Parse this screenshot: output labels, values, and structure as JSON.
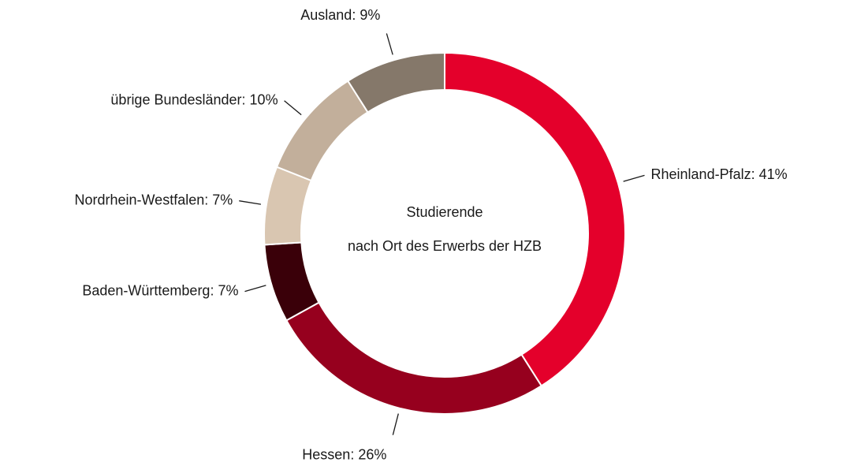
{
  "chart_data": {
    "type": "donut",
    "center_text": [
      "Studierende",
      "nach Ort des Erwerbs der HZB"
    ],
    "values": [
      41,
      26,
      7,
      7,
      10,
      9
    ],
    "value_labels": [
      "Rheinland-Pfalz: 41%",
      "Hessen: 26%",
      "Baden-Württemberg: 7%",
      "Nordrhein-Westfalen: 7%",
      "übrige Bundesländer: 10%",
      "Ausland: 9%"
    ],
    "colors": [
      "#e4002b",
      "#96001e",
      "#3a0009",
      "#d9c6b1",
      "#c2af9b",
      "#85786a"
    ]
  }
}
